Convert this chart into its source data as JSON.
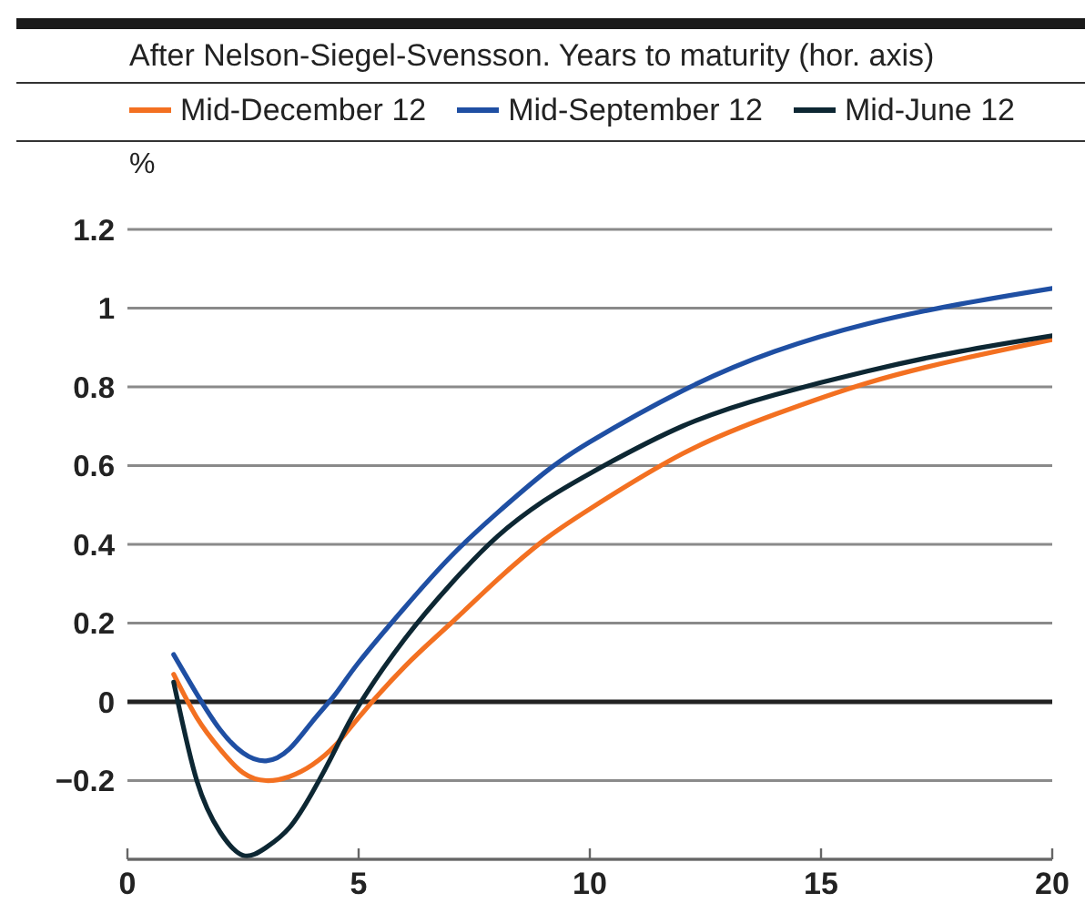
{
  "chart_data": {
    "type": "line",
    "title": "After Nelson-Siegel-Svensson. Years to maturity (hor. axis)",
    "ylabel": "%",
    "series": [
      {
        "name": "Mid-December 12",
        "color": "#f37021",
        "x": [
          1,
          1.5,
          2,
          2.5,
          3,
          3.5,
          4,
          4.5,
          5,
          6,
          7,
          8,
          9,
          10,
          12,
          14,
          16,
          18,
          20
        ],
        "values": [
          0.07,
          -0.04,
          -0.12,
          -0.18,
          -0.2,
          -0.19,
          -0.16,
          -0.11,
          -0.04,
          0.09,
          0.2,
          0.31,
          0.41,
          0.49,
          0.63,
          0.73,
          0.81,
          0.87,
          0.92
        ]
      },
      {
        "name": "Mid-September 12",
        "color": "#1f4fa3",
        "x": [
          1,
          1.5,
          2,
          2.5,
          3,
          3.5,
          4,
          4.5,
          5,
          6,
          7,
          8,
          9,
          10,
          12,
          14,
          16,
          18,
          20
        ],
        "values": [
          0.12,
          0.02,
          -0.07,
          -0.13,
          -0.15,
          -0.12,
          -0.05,
          0.02,
          0.1,
          0.24,
          0.37,
          0.48,
          0.58,
          0.66,
          0.79,
          0.89,
          0.96,
          1.01,
          1.05
        ]
      },
      {
        "name": "Mid-June 12",
        "color": "#0d2733",
        "x": [
          1,
          1.5,
          2,
          2.5,
          3,
          3.5,
          4,
          4.5,
          5,
          6,
          7,
          8,
          9,
          10,
          12,
          14,
          16,
          18,
          20
        ],
        "values": [
          0.05,
          -0.2,
          -0.33,
          -0.39,
          -0.37,
          -0.32,
          -0.23,
          -0.12,
          -0.01,
          0.16,
          0.3,
          0.42,
          0.51,
          0.58,
          0.7,
          0.78,
          0.84,
          0.89,
          0.93
        ]
      }
    ],
    "xlim": [
      0,
      20
    ],
    "xticks": [
      0,
      5,
      10,
      15,
      20
    ],
    "ylim": [
      -0.4,
      1.2
    ],
    "yticks": [
      1.2,
      1,
      0.8,
      0.6,
      0.4,
      0.2,
      0,
      {
        "value": -0.2,
        "label": "−0.2"
      }
    ],
    "grid": "y",
    "legend": "top",
    "ref_lines": [
      {
        "axis": "y",
        "value": 0,
        "color": "#222222"
      }
    ]
  }
}
